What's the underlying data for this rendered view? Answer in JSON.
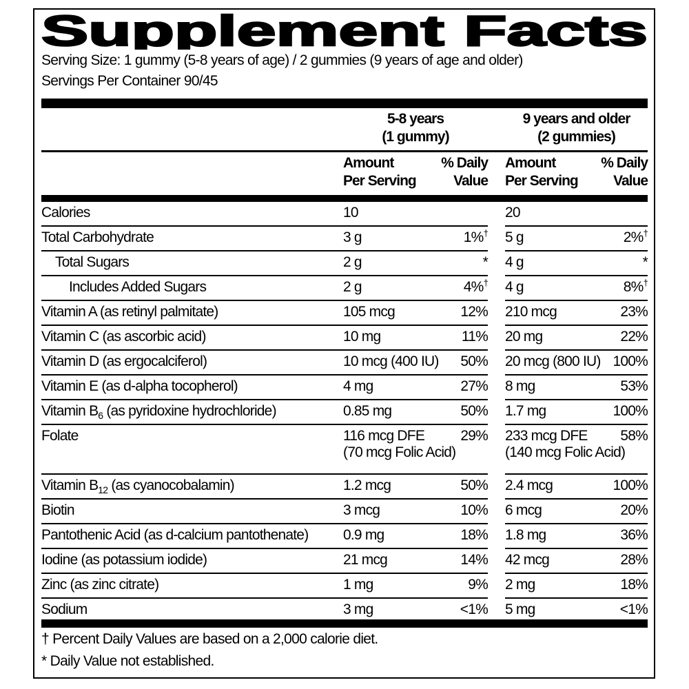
{
  "title": "Supplement Facts",
  "serving_size": "Serving Size: 1 gummy (5-8 years of age) / 2 gummies (9 years of age and older)",
  "servings_per_container": "Servings Per Container 90/45",
  "groups": [
    {
      "line1": "5-8 years",
      "line2": "(1 gummy)"
    },
    {
      "line1": "9 years and older",
      "line2": "(2 gummies)"
    }
  ],
  "col_headers": {
    "amount_1": "Amount",
    "amount_2": "Per Serving",
    "dv_1": "% Daily",
    "dv_2": "Value"
  },
  "rows": [
    {
      "label": "Calories",
      "indent": 0,
      "a1": "10",
      "d1": "",
      "m1": "",
      "a2": "20",
      "d2": "",
      "m2": ""
    },
    {
      "label": "Total Carbohydrate",
      "indent": 0,
      "a1": "3 g",
      "d1": "1%",
      "m1": "†",
      "a2": "5 g",
      "d2": "2%",
      "m2": "†"
    },
    {
      "label": "Total Sugars",
      "indent": 1,
      "a1": "2 g",
      "d1": "*",
      "m1": "",
      "a2": "4 g",
      "d2": "*",
      "m2": ""
    },
    {
      "label": "Includes Added Sugars",
      "indent": 2,
      "a1": "2 g",
      "d1": "4%",
      "m1": "†",
      "a2": "4 g",
      "d2": "8%",
      "m2": "†"
    },
    {
      "label": "Vitamin A (as retinyl palmitate)",
      "indent": 0,
      "a1": "105 mcg",
      "d1": "12%",
      "m1": "",
      "a2": "210 mcg",
      "d2": "23%",
      "m2": ""
    },
    {
      "label": "Vitamin C (as ascorbic acid)",
      "indent": 0,
      "a1": "10 mg",
      "d1": "11%",
      "m1": "",
      "a2": "20 mg",
      "d2": "22%",
      "m2": ""
    },
    {
      "label": "Vitamin D (as ergocalciferol)",
      "indent": 0,
      "a1": "10 mcg (400 IU)",
      "d1": "50%",
      "m1": "",
      "a2": "20 mcg (800 IU)",
      "d2": "100%",
      "m2": ""
    },
    {
      "label": "Vitamin E (as d-alpha tocopherol)",
      "indent": 0,
      "a1": "4 mg",
      "d1": "27%",
      "m1": "",
      "a2": "8 mg",
      "d2": "53%",
      "m2": ""
    },
    {
      "label": "Vitamin B",
      "sub": "6",
      "post": " (as pyridoxine hydrochloride)",
      "indent": 0,
      "a1": "0.85 mg",
      "d1": "50%",
      "m1": "",
      "a2": "1.7 mg",
      "d2": "100%",
      "m2": ""
    },
    {
      "label": "Folate",
      "indent": 0,
      "a1": "116 mcg DFE",
      "a1b": "(70 mcg Folic Acid)",
      "d1": "29%",
      "m1": "",
      "a2": "233 mcg DFE",
      "a2b": "(140 mcg Folic Acid)",
      "d2": "58%",
      "m2": ""
    },
    {
      "label": "Vitamin B",
      "sub": "12",
      "post": " (as cyanocobalamin)",
      "indent": 0,
      "a1": "1.2 mcg",
      "d1": "50%",
      "m1": "",
      "a2": "2.4 mcg",
      "d2": "100%",
      "m2": ""
    },
    {
      "label": "Biotin",
      "indent": 0,
      "a1": "3 mcg",
      "d1": "10%",
      "m1": "",
      "a2": "6 mcg",
      "d2": "20%",
      "m2": ""
    },
    {
      "label": "Pantothenic Acid (as d-calcium pantothenate)",
      "indent": 0,
      "a1": "0.9 mg",
      "d1": "18%",
      "m1": "",
      "a2": "1.8 mg",
      "d2": "36%",
      "m2": ""
    },
    {
      "label": "Iodine (as potassium iodide)",
      "indent": 0,
      "a1": "21 mcg",
      "d1": "14%",
      "m1": "",
      "a2": "42 mcg",
      "d2": "28%",
      "m2": ""
    },
    {
      "label": "Zinc (as zinc citrate)",
      "indent": 0,
      "a1": "1 mg",
      "d1": "9%",
      "m1": "",
      "a2": "2 mg",
      "d2": "18%",
      "m2": ""
    },
    {
      "label": "Sodium",
      "indent": 0,
      "a1": "3 mg",
      "d1": "<1%",
      "m1": "",
      "a2": "5 mg",
      "d2": "<1%",
      "m2": ""
    }
  ],
  "footnotes": [
    "† Percent Daily Values are based on a 2,000 calorie diet.",
    "* Daily Value not established."
  ]
}
